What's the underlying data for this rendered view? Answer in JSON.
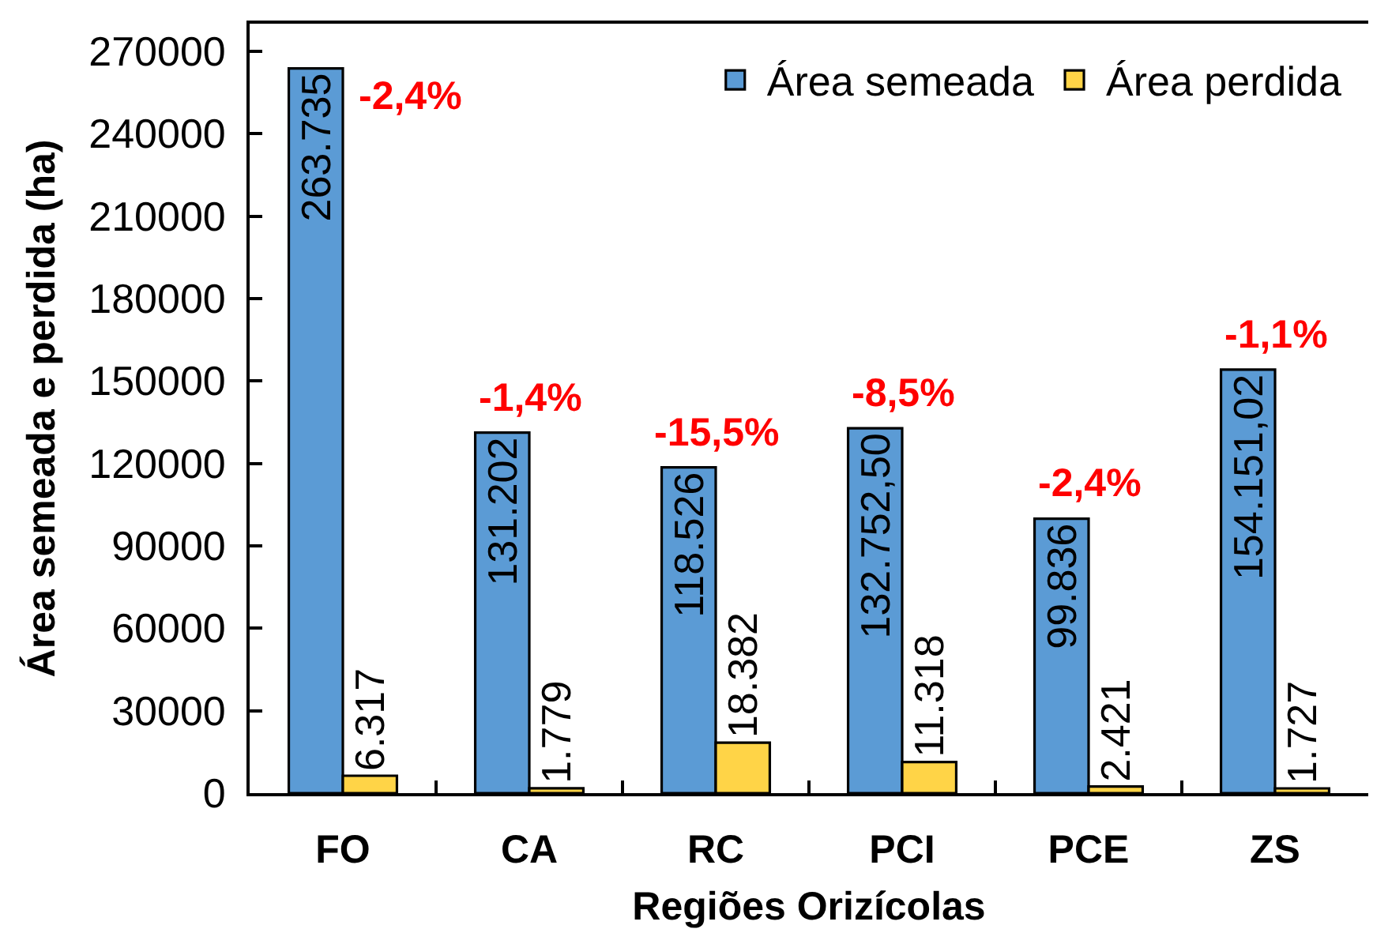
{
  "chart_data": {
    "type": "bar",
    "ylabel": "Área semeada e perdida (ha)",
    "xlabel": "Regiões Orizícolas",
    "categories": [
      "FO",
      "CA",
      "RC",
      "PCI",
      "PCE",
      "ZS"
    ],
    "series": [
      {
        "name": "Área semeada",
        "color": "#5b9bd5",
        "values": [
          263735,
          131202,
          118526,
          132752.5,
          99836,
          154151.02
        ],
        "value_labels": [
          "263.735",
          "131.202",
          "118.526",
          "132.752,50",
          "99.836",
          "154.151,02"
        ]
      },
      {
        "name": "Área perdida",
        "color": "#ffd447",
        "values": [
          6317,
          1779,
          18382,
          11318,
          2421,
          1727
        ],
        "value_labels": [
          "6.317",
          "1.779",
          "18.382",
          "11.318",
          "2.421",
          "1.727"
        ]
      }
    ],
    "ylim": [
      0,
      280000
    ],
    "yticks": [
      0,
      30000,
      60000,
      90000,
      120000,
      150000,
      180000,
      210000,
      240000,
      270000
    ],
    "grid": false,
    "legend": "top right",
    "annotations": [
      {
        "text": "-2,4%",
        "x": "FO",
        "y": 263735
      },
      {
        "text": "-1,4%",
        "x": "CA",
        "y": 131202
      },
      {
        "text": "-15,5%",
        "x": "RC",
        "y": 118526
      },
      {
        "text": "-8,5%",
        "x": "PCI",
        "y": 132752.5
      },
      {
        "text": "-2,4%",
        "x": "PCE",
        "y": 99836
      },
      {
        "text": "-1,1%",
        "x": "ZS",
        "y": 154151.02
      }
    ]
  }
}
